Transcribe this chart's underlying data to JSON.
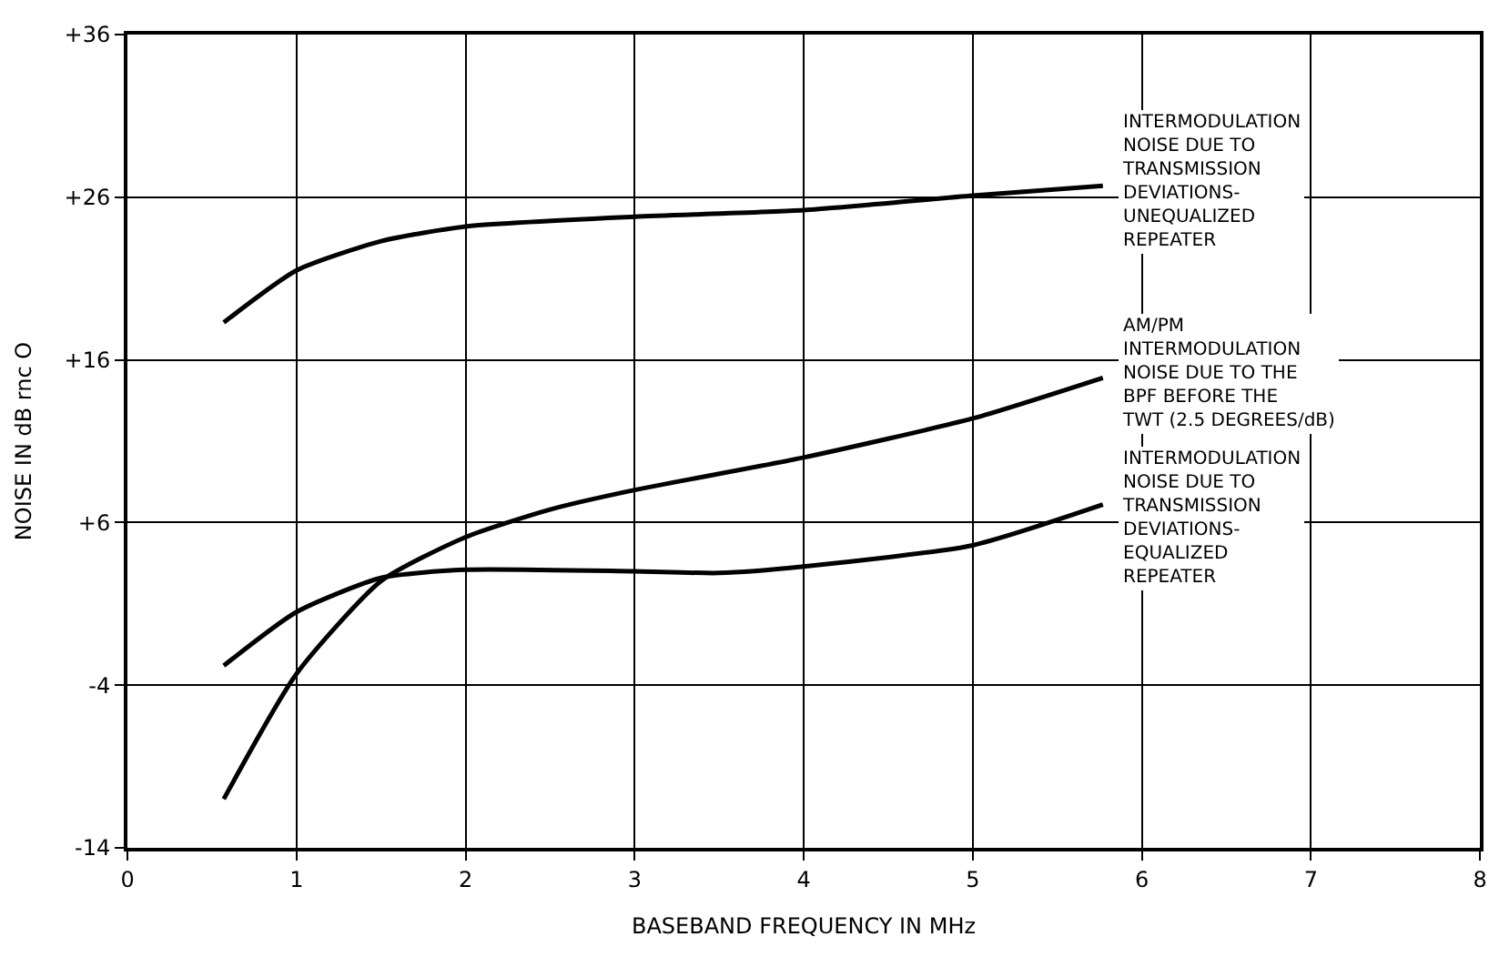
{
  "chart_data": {
    "type": "line",
    "xlabel": "BASEBAND FREQUENCY IN MHz",
    "ylabel": "NOISE IN dB rnc O",
    "xlim": [
      0,
      8
    ],
    "xticks": [
      0,
      1,
      2,
      3,
      4,
      5,
      6,
      7,
      8
    ],
    "ylim": [
      -14,
      36
    ],
    "yticks": [
      {
        "value": 36,
        "label": "+36"
      },
      {
        "value": 26,
        "label": "+26"
      },
      {
        "value": 16,
        "label": "+16"
      },
      {
        "value": 6,
        "label": "+6"
      },
      -4,
      -14
    ],
    "grid": true,
    "legend": false,
    "marker": "none",
    "line_style": "solid",
    "series": [
      {
        "name": "INTERMODULATION\nNOISE DUE TO\nTRANSMISSION\nDEVIATIONS-\nUNEQUALIZED\nREPEATER",
        "color": "#000000",
        "x": [
          0.57,
          1,
          1.5,
          2,
          3,
          4,
          5,
          5.77
        ],
        "values": [
          18.3,
          21.5,
          23.3,
          24.2,
          24.8,
          25.2,
          26.1,
          26.7
        ]
      },
      {
        "name": "AM/PM\nINTERMODULATION\nNOISE DUE TO THE\nBPF BEFORE THE\nTWT (2.5 DEGREES/dB)",
        "color": "#000000",
        "x": [
          0.57,
          1,
          1.5,
          2,
          2.5,
          3,
          4,
          5,
          5.77
        ],
        "values": [
          -11.0,
          -3.3,
          2.4,
          5.1,
          6.8,
          8.0,
          10.0,
          12.4,
          14.9
        ]
      },
      {
        "name": "INTERMODULATION\nNOISE DUE TO\nTRANSMISSION\nDEVIATIONS-\nEQUALIZED\nREPEATER",
        "color": "#000000",
        "x": [
          0.57,
          1,
          1.5,
          2,
          3,
          3.5,
          4,
          5,
          5.77
        ],
        "values": [
          -2.8,
          0.5,
          2.6,
          3.1,
          3.0,
          2.9,
          3.3,
          4.6,
          7.1
        ]
      }
    ]
  }
}
